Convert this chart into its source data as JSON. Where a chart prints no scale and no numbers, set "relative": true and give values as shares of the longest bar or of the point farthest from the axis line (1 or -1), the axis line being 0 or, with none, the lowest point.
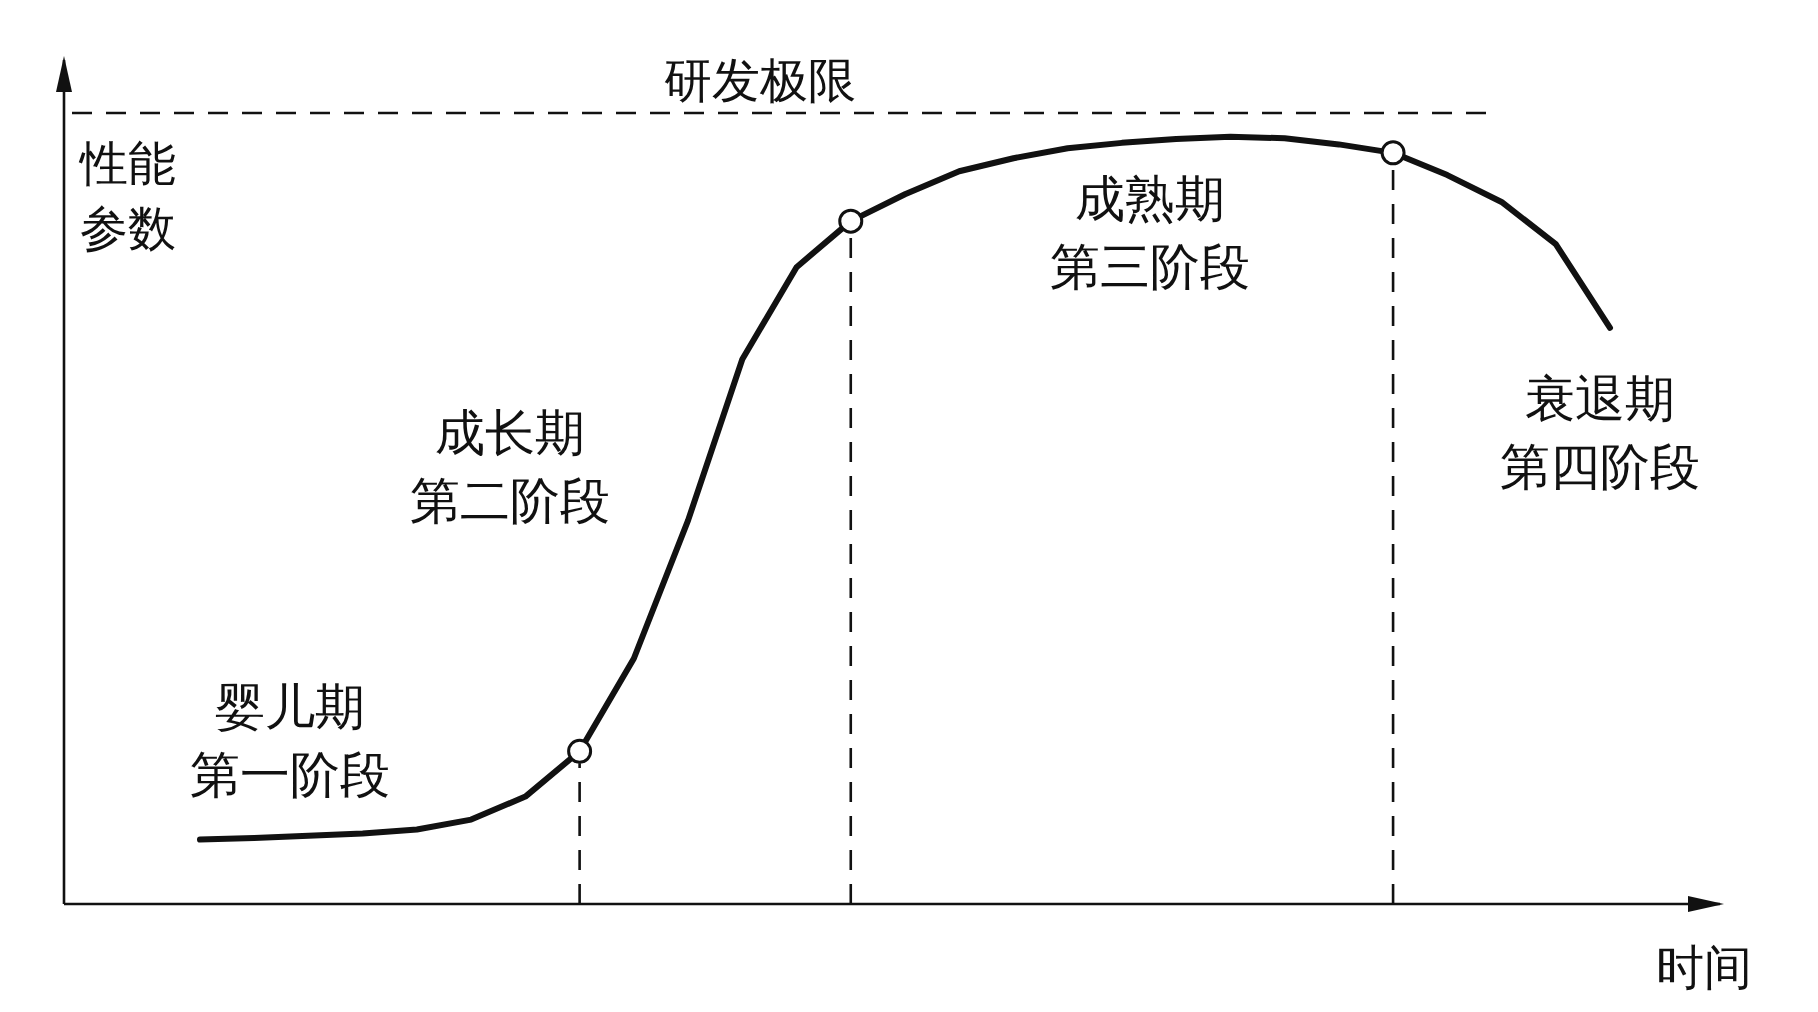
{
  "chart_data": {
    "type": "line",
    "relative": true,
    "xlabel": "时间",
    "ylabel": "性能参数",
    "categories": [
      null,
      null,
      null,
      null,
      null,
      null,
      null,
      null,
      null,
      null,
      null,
      null,
      null,
      null,
      null,
      null,
      null,
      null,
      null,
      null,
      null,
      null,
      null,
      null,
      null,
      null,
      null
    ],
    "series": [
      {
        "color": "#111111",
        "values": [
          0.084,
          0.086,
          0.089,
          0.092,
          0.097,
          0.11,
          0.14,
          0.199,
          0.32,
          0.5,
          0.71,
          0.83,
          0.89,
          0.925,
          0.955,
          0.972,
          0.985,
          0.992,
          0.997,
          1,
          0.998,
          0.99,
          0.979,
          0.95,
          0.915,
          0.86,
          0.751
        ]
      }
    ],
    "ref_lines": [
      {
        "axis": "y",
        "value": 1.031,
        "label": "研发极限",
        "line_style": "dashed"
      }
    ],
    "annotations": [
      "婴儿期第一阶段",
      "成长期第二阶段",
      "成熟期第三阶段",
      "衰退期第四阶段"
    ]
  }
}
